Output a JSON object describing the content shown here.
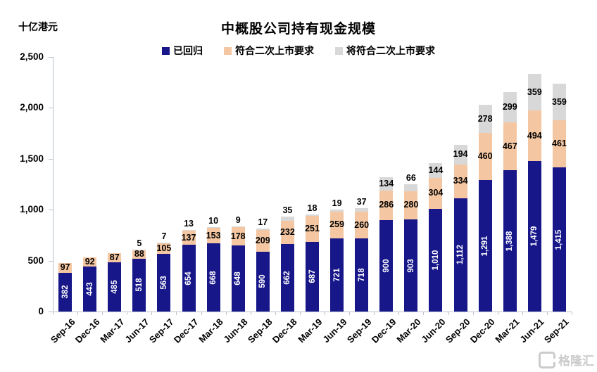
{
  "unit_label": "十亿港元",
  "title": "中概股公司持有现金规模",
  "watermark": "格隆汇",
  "colors": {
    "returned": "#17178a",
    "qualified": "#f4c7a2",
    "will_qualify": "#d8d8d8",
    "axis": "#b9c3cf",
    "watermark": "#cbcbcb"
  },
  "chart_data": {
    "type": "bar",
    "stacked": true,
    "title": "中概股公司持有现金规模",
    "ylabel": "十亿港元",
    "ylim": [
      0,
      2500
    ],
    "ytick_step": 500,
    "grid": false,
    "legend_position": "top",
    "categories": [
      "Sep-16",
      "Dec-16",
      "Mar-17",
      "Jun-17",
      "Sep-17",
      "Dec-17",
      "Mar-18",
      "Jun-18",
      "Sep-18",
      "Dec-18",
      "Mar-19",
      "Jun-19",
      "Sep-19",
      "Dec-19",
      "Mar-20",
      "Jun-20",
      "Sep-20",
      "Dec-20",
      "Mar-21",
      "Jun-21",
      "Sep-21"
    ],
    "series": [
      {
        "name": "已回归",
        "color": "#17178a",
        "label_style": "vertical-white",
        "values": [
          382,
          443,
          485,
          518,
          563,
          654,
          668,
          648,
          590,
          662,
          687,
          721,
          718,
          900,
          903,
          1010,
          1112,
          1291,
          1388,
          1479,
          1415
        ]
      },
      {
        "name": "符合二次上市要求",
        "color": "#f4c7a2",
        "label_style": "inside-black",
        "values": [
          97,
          92,
          87,
          88,
          105,
          137,
          153,
          178,
          209,
          232,
          251,
          259,
          260,
          286,
          280,
          304,
          334,
          460,
          467,
          494,
          461
        ]
      },
      {
        "name": "将符合二次上市要求",
        "color": "#d8d8d8",
        "label_style": "inside-or-above-black",
        "values": [
          null,
          null,
          null,
          5,
          7,
          13,
          10,
          9,
          17,
          35,
          18,
          19,
          37,
          134,
          66,
          144,
          194,
          278,
          299,
          359,
          359
        ]
      }
    ]
  }
}
